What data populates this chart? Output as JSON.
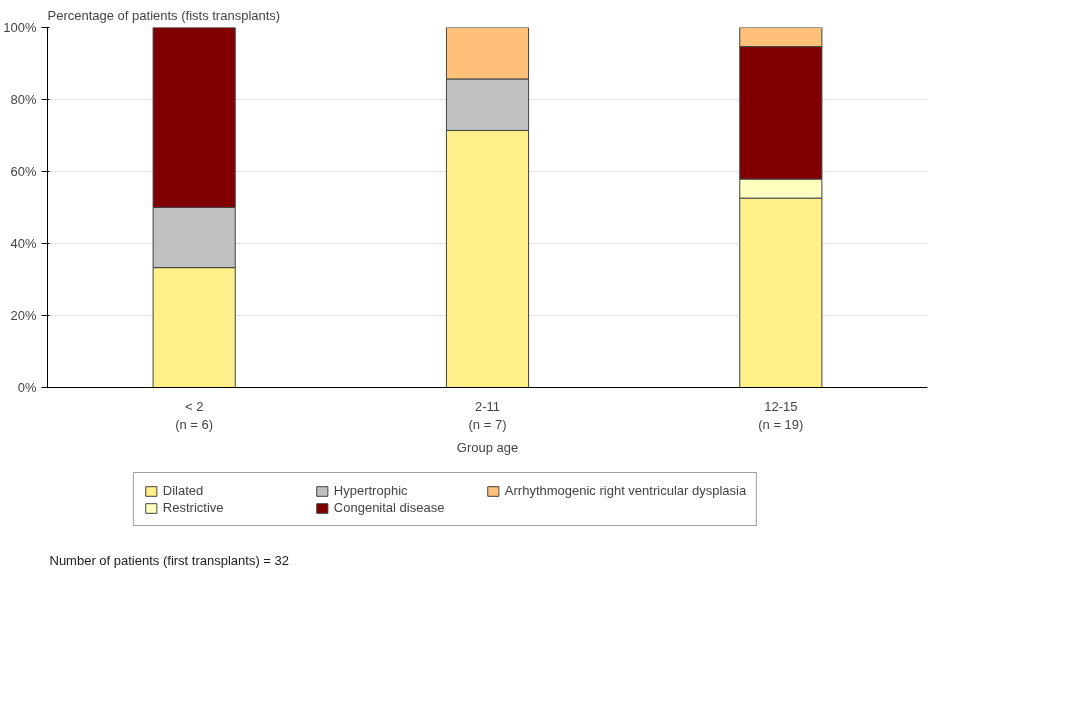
{
  "chart_data": {
    "type": "bar",
    "stacked": true,
    "ylabel": "Percentage of patients (fists transplants)",
    "xlabel": "Group age",
    "categories": [
      "< 2\n(n = 6)",
      "2-11\n(n = 7)",
      "12-15\n(n = 19)"
    ],
    "series": [
      {
        "name": "Dilated",
        "color": "#fff08a",
        "values": [
          33.3,
          71.4,
          52.6
        ]
      },
      {
        "name": "Restrictive",
        "color": "#ffffc0",
        "values": [
          null,
          null,
          5.3
        ]
      },
      {
        "name": "Hypertrophic",
        "color": "#c0c0c0",
        "values": [
          16.7,
          14.3,
          null
        ]
      },
      {
        "name": "Congenital disease",
        "color": "#800000",
        "values": [
          50.0,
          null,
          36.8
        ]
      },
      {
        "name": "Arrhythmogenic right ventricular dysplasia",
        "color": "#ffc07a",
        "values": [
          null,
          14.3,
          5.3
        ]
      }
    ],
    "ylim": [
      0,
      100
    ],
    "yticks": [
      {
        "value": 0,
        "label": "0%"
      },
      {
        "value": 20,
        "label": "20%"
      },
      {
        "value": 40,
        "label": "40%"
      },
      {
        "value": 60,
        "label": "60%"
      },
      {
        "value": 80,
        "label": "80%"
      },
      {
        "value": 100,
        "label": "100%"
      }
    ],
    "grid": "y",
    "legend": "bottom",
    "annotations": [
      "Number of patients (first transplants) = 32"
    ]
  }
}
